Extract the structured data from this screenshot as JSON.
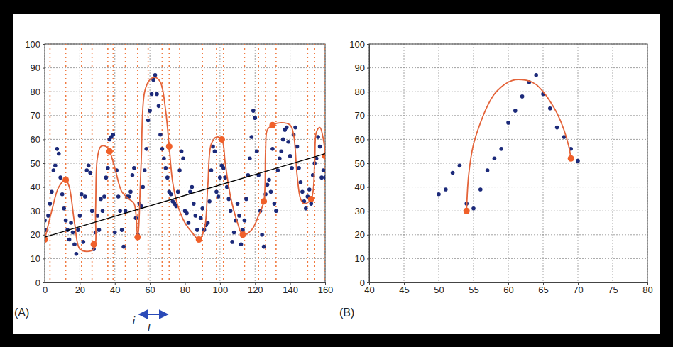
{
  "chart_data": [
    {
      "type": "scatter",
      "title": "(A)",
      "xlim": [
        0,
        160
      ],
      "xticks": [
        0,
        20,
        40,
        60,
        80,
        100,
        120,
        140,
        160
      ],
      "ylim": [
        0,
        100
      ],
      "yticks": [
        0,
        10,
        20,
        30,
        40,
        50,
        60,
        70,
        80,
        90,
        100
      ],
      "grid": true,
      "annotations": [
        "i",
        "l"
      ],
      "vlines": {
        "color": "#f07a40",
        "line_style": "dotted",
        "x": [
          0,
          3,
          12,
          21,
          27,
          36,
          39,
          46,
          53,
          59,
          67,
          71,
          77,
          90,
          98,
          102,
          114,
          122,
          126,
          132,
          150,
          154,
          160
        ]
      },
      "series": [
        {
          "type": "scatter",
          "color": "#1c2a7a",
          "marker": "circle",
          "x": [
            0,
            1,
            2,
            3,
            4,
            5,
            6,
            7,
            8,
            9,
            10,
            11,
            12,
            13,
            14,
            15,
            16,
            17,
            18,
            19,
            20,
            21,
            22,
            23,
            24,
            25,
            26,
            27,
            28,
            29,
            30,
            31,
            32,
            33,
            34,
            35,
            36,
            37,
            38,
            39,
            40,
            41,
            42,
            43,
            44,
            45,
            46,
            47,
            48,
            49,
            50,
            51,
            52,
            53,
            54,
            55,
            56,
            57,
            58,
            59,
            60,
            61,
            62,
            63,
            64,
            65,
            66,
            67,
            68,
            69,
            70,
            71,
            72,
            73,
            74,
            75,
            76,
            77,
            78,
            79,
            80,
            81,
            82,
            83,
            84,
            85,
            86,
            87,
            88,
            89,
            90,
            91,
            92,
            93,
            94,
            95,
            96,
            97,
            98,
            99,
            100,
            101,
            102,
            103,
            104,
            105,
            106,
            107,
            108,
            109,
            110,
            111,
            112,
            113,
            114,
            115,
            116,
            117,
            118,
            119,
            120,
            121,
            122,
            123,
            124,
            125,
            126,
            127,
            128,
            129,
            130,
            131,
            132,
            133,
            134,
            135,
            136,
            137,
            138,
            139,
            140,
            141,
            142,
            143,
            144,
            145,
            146,
            147,
            148,
            149,
            150,
            151,
            152,
            153,
            154,
            155,
            156,
            157,
            158,
            159,
            160
          ],
          "values": [
            26,
            22,
            28,
            33,
            38,
            47,
            49,
            56,
            54,
            44,
            37,
            31,
            26,
            22,
            18,
            25,
            21,
            16,
            12,
            22,
            28,
            37,
            17,
            36,
            47,
            49,
            46,
            30,
            14,
            21,
            28,
            22,
            35,
            30,
            36,
            44,
            48,
            60,
            61,
            62,
            21,
            47,
            36,
            30,
            22,
            15,
            30,
            36,
            36,
            38,
            45,
            48,
            27,
            20,
            33,
            32,
            40,
            47,
            56,
            68,
            72,
            79,
            85,
            87,
            79,
            74,
            62,
            56,
            52,
            48,
            44,
            38,
            37,
            34,
            33,
            32,
            38,
            47,
            55,
            52,
            30,
            29,
            25,
            38,
            40,
            33,
            28,
            22,
            18,
            27,
            31,
            22,
            24,
            25,
            34,
            47,
            57,
            55,
            38,
            36,
            44,
            49,
            48,
            44,
            40,
            35,
            30,
            17,
            21,
            26,
            33,
            28,
            16,
            22,
            26,
            35,
            45,
            52,
            61,
            72,
            69,
            55,
            45,
            30,
            20,
            15,
            37,
            41,
            43,
            38,
            56,
            33,
            30,
            47,
            52,
            55,
            60,
            64,
            65,
            59,
            53,
            48,
            62,
            65,
            57,
            48,
            42,
            38,
            34,
            31,
            36,
            39,
            33,
            45,
            50,
            52,
            61,
            57,
            44,
            47,
            44
          ]
        },
        {
          "type": "line",
          "color": "#e4643a",
          "line_style": "solid",
          "x": [
            0,
            4,
            8,
            12,
            14,
            17,
            20,
            24,
            28,
            29,
            30,
            32,
            35,
            37,
            40,
            44,
            48,
            51,
            53,
            55,
            57,
            60,
            63,
            66,
            69,
            71,
            73,
            76,
            80,
            84,
            88,
            91,
            93,
            95,
            98,
            101,
            103,
            106,
            110,
            113,
            118,
            122,
            125,
            126,
            127,
            130,
            135,
            140,
            142,
            144,
            146,
            148,
            152,
            154,
            155,
            157,
            159,
            160
          ],
          "values": [
            18,
            30,
            40,
            43,
            40,
            25,
            14,
            13,
            14,
            30,
            52,
            57,
            57,
            55,
            48,
            38,
            35,
            33,
            19,
            50,
            80,
            85,
            86,
            84,
            72,
            57,
            42,
            32,
            25,
            21,
            18,
            22,
            40,
            58,
            61,
            60,
            50,
            36,
            25,
            20,
            22,
            28,
            34,
            55,
            64,
            66,
            67,
            66,
            62,
            45,
            35,
            33,
            35,
            50,
            63,
            65,
            60,
            53
          ]
        },
        {
          "type": "scatter",
          "color": "#f0602a",
          "marker": "circle",
          "x": [
            0,
            12,
            28,
            37,
            53,
            71,
            88,
            101,
            113,
            125,
            130,
            152,
            160
          ],
          "values": [
            18,
            43,
            16,
            55,
            19,
            57,
            18,
            60,
            20,
            34,
            66,
            35,
            53
          ]
        },
        {
          "type": "line",
          "color": "#000000",
          "line_style": "solid",
          "x": [
            0,
            160
          ],
          "values": [
            19,
            54
          ]
        }
      ]
    },
    {
      "type": "scatter",
      "title": "(B)",
      "xlim": [
        40,
        80
      ],
      "xticks": [
        40,
        45,
        50,
        55,
        60,
        65,
        70,
        75,
        80
      ],
      "ylim": [
        0,
        100
      ],
      "yticks": [
        0,
        10,
        20,
        30,
        40,
        50,
        60,
        70,
        80,
        90,
        100
      ],
      "grid": true,
      "series": [
        {
          "type": "scatter",
          "color": "#1c2a7a",
          "marker": "circle",
          "x": [
            50,
            51,
            52,
            53,
            54,
            55,
            56,
            57,
            58,
            59,
            60,
            61,
            62,
            63,
            64,
            65,
            66,
            67,
            68,
            69,
            70
          ],
          "values": [
            37,
            39,
            46,
            49,
            33,
            31,
            39,
            47,
            52,
            56,
            67,
            72,
            78,
            84,
            87,
            79,
            73,
            65,
            61,
            56,
            51
          ]
        },
        {
          "type": "line",
          "color": "#e4643a",
          "line_style": "solid",
          "x": [
            54,
            54.3,
            55,
            56,
            57,
            58,
            59,
            60,
            61,
            62,
            63,
            64,
            65,
            66,
            67,
            68,
            68.7,
            69
          ],
          "values": [
            30,
            45,
            58,
            67,
            74,
            79,
            82,
            84,
            85,
            85,
            84.5,
            83,
            80,
            76,
            71,
            64,
            57,
            52
          ]
        },
        {
          "type": "scatter",
          "color": "#f0602a",
          "marker": "circle",
          "x": [
            54,
            69
          ],
          "values": [
            30,
            52
          ]
        }
      ]
    }
  ]
}
